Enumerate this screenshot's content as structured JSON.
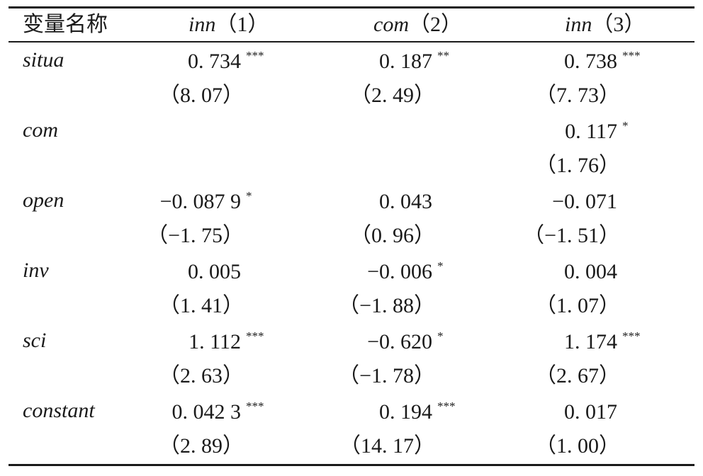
{
  "table": {
    "header": {
      "variable": "变量名称",
      "col1_name": "inn",
      "col1_num": "（1）",
      "col2_name": "com",
      "col2_num": "（2）",
      "col3_name": "inn",
      "col3_num": "（3）"
    },
    "rows": [
      {
        "name": "situa",
        "coef": [
          "0. 734",
          "0. 187",
          "0. 738"
        ],
        "stars": [
          "***",
          "**",
          "***"
        ],
        "t": [
          "（8. 07）",
          "（2. 49）",
          "（7. 73）"
        ]
      },
      {
        "name": "com",
        "coef": [
          "",
          "",
          "0. 117"
        ],
        "stars": [
          "",
          "",
          "*"
        ],
        "t": [
          "",
          "",
          "（1. 76）"
        ]
      },
      {
        "name": "open",
        "coef": [
          "−0. 087 9",
          "0. 043",
          "−0. 071"
        ],
        "stars": [
          "*",
          "",
          ""
        ],
        "t": [
          "（−1. 75）",
          "（0. 96）",
          "（−1. 51）"
        ]
      },
      {
        "name": "inv",
        "coef": [
          "0. 005",
          "−0. 006",
          "0. 004"
        ],
        "stars": [
          "",
          "*",
          ""
        ],
        "t": [
          "（1. 41）",
          "（−1. 88）",
          "（1. 07）"
        ]
      },
      {
        "name": "sci",
        "coef": [
          "1. 112",
          "−0. 620",
          "1. 174"
        ],
        "stars": [
          "***",
          "*",
          "***"
        ],
        "t": [
          "（2. 63）",
          "（−1. 78）",
          "（2. 67）"
        ]
      },
      {
        "name": "constant",
        "coef": [
          "0. 042 3",
          "0. 194",
          "0. 017"
        ],
        "stars": [
          "***",
          "***",
          ""
        ],
        "t": [
          "（2. 89）",
          "（14. 17）",
          "（1. 00）"
        ]
      }
    ]
  }
}
